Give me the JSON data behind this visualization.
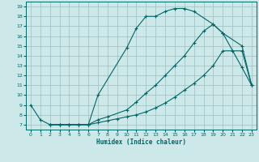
{
  "xlabel": "Humidex (Indice chaleur)",
  "bg_color": "#cce8e8",
  "grid_color": "#9bbfbf",
  "line_color": "#006666",
  "xlim": [
    -0.5,
    23.5
  ],
  "ylim": [
    6.5,
    19.5
  ],
  "xticks": [
    0,
    1,
    2,
    3,
    4,
    5,
    6,
    7,
    8,
    9,
    10,
    11,
    12,
    13,
    14,
    15,
    16,
    17,
    18,
    19,
    20,
    21,
    22,
    23
  ],
  "yticks": [
    7,
    8,
    9,
    10,
    11,
    12,
    13,
    14,
    15,
    16,
    17,
    18,
    19
  ],
  "curve1_x": [
    0,
    1,
    2,
    3,
    4,
    5,
    6,
    7,
    10,
    11,
    12,
    13,
    14,
    15,
    16,
    17,
    19,
    20,
    22,
    23
  ],
  "curve1_y": [
    9.0,
    7.5,
    7.0,
    7.0,
    7.0,
    7.0,
    7.0,
    10.0,
    14.8,
    16.8,
    18.0,
    18.0,
    18.5,
    18.8,
    18.8,
    18.5,
    17.2,
    16.3,
    12.8,
    11.0
  ],
  "curve2_x": [
    2,
    3,
    4,
    5,
    6,
    7,
    8,
    10,
    11,
    12,
    13,
    14,
    15,
    16,
    17,
    18,
    19,
    20,
    22,
    23
  ],
  "curve2_y": [
    7.0,
    7.0,
    7.0,
    7.0,
    7.0,
    7.5,
    7.8,
    8.5,
    9.3,
    10.2,
    11.0,
    12.0,
    13.0,
    14.0,
    15.3,
    16.5,
    17.2,
    16.3,
    15.0,
    11.0
  ],
  "curve3_x": [
    2,
    3,
    4,
    5,
    6,
    7,
    8,
    9,
    10,
    11,
    12,
    13,
    14,
    15,
    16,
    17,
    18,
    19,
    20,
    21,
    22,
    23
  ],
  "curve3_y": [
    7.0,
    7.0,
    7.0,
    7.0,
    7.0,
    7.2,
    7.4,
    7.6,
    7.8,
    8.0,
    8.3,
    8.7,
    9.2,
    9.8,
    10.5,
    11.2,
    12.0,
    13.0,
    14.5,
    14.5,
    14.5,
    11.0
  ]
}
